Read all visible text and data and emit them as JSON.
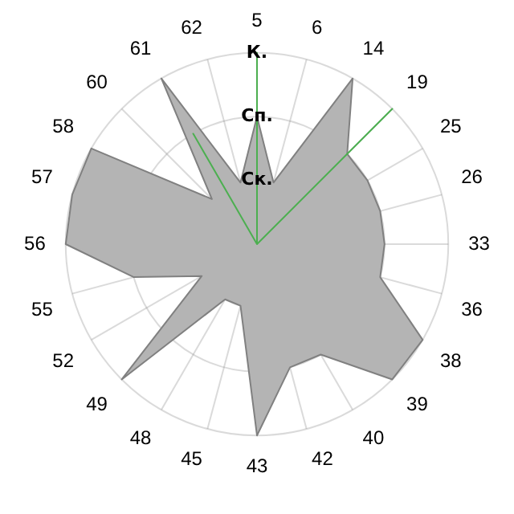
{
  "chart_data": {
    "type": "radar",
    "categories": [
      "5",
      "6",
      "14",
      "19",
      "25",
      "26",
      "33",
      "36",
      "38",
      "39",
      "40",
      "42",
      "43",
      "45",
      "48",
      "49",
      "52",
      "55",
      "56",
      "57",
      "58",
      "60",
      "61",
      "62"
    ],
    "ylim": [
      0,
      3
    ],
    "yticks": [
      {
        "value": 1,
        "label": "Ск."
      },
      {
        "value": 2,
        "label": "Сп."
      },
      {
        "value": 3,
        "label": "К."
      }
    ],
    "grid": true,
    "legend": false,
    "marker": "none",
    "series": [
      {
        "color": "#b4b4b4",
        "values": [
          2,
          1,
          3,
          2,
          2,
          2,
          2,
          2,
          3,
          3,
          2,
          2,
          3,
          1,
          1,
          3,
          1,
          2,
          3,
          3,
          3,
          1,
          3,
          1
        ]
      },
      {
        "color": "#4caf50",
        "values": [
          3,
          0,
          0,
          3,
          0,
          0,
          0,
          0,
          0,
          0,
          0,
          0,
          0,
          0,
          0,
          0,
          0,
          0,
          0,
          0,
          0,
          0,
          2,
          0
        ]
      }
    ]
  }
}
